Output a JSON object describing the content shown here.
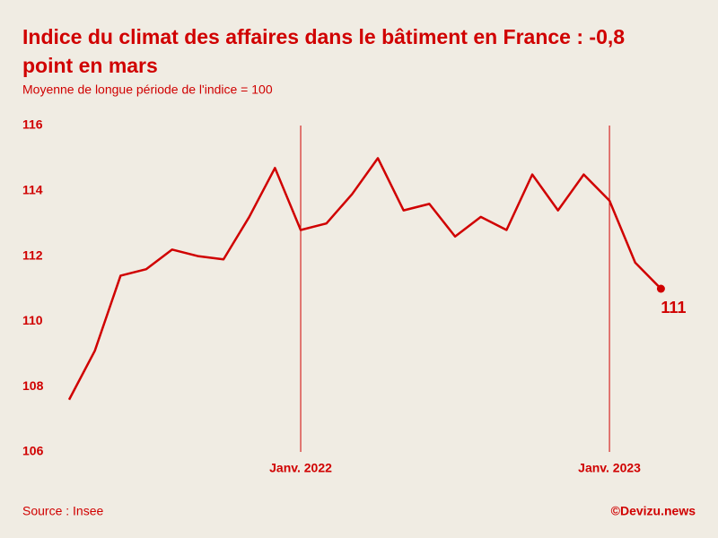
{
  "chart_data": {
    "type": "line",
    "title": "Indice du climat des affaires dans le bâtiment en France : -0,8",
    "title_line2": "point en mars",
    "subtitle": "Moyenne de longue période de l'indice = 100",
    "source": "Source : Insee",
    "credit": "©Devizu.news",
    "categories": [
      null,
      null,
      null,
      null,
      null,
      null,
      null,
      null,
      null,
      "Janv. 2022",
      null,
      null,
      null,
      null,
      null,
      null,
      null,
      null,
      null,
      null,
      null,
      "Janv. 2023",
      null,
      null
    ],
    "series": [
      {
        "name": "Indice",
        "color": "#d00000",
        "values": [
          107.6,
          109.1,
          111.4,
          111.6,
          112.2,
          112.0,
          111.9,
          113.2,
          114.7,
          112.8,
          113.0,
          113.9,
          115.0,
          113.4,
          113.6,
          112.6,
          113.2,
          112.8,
          114.5,
          113.4,
          114.5,
          113.7,
          111.8,
          111.0
        ],
        "value_labels": [
          null,
          null,
          null,
          null,
          null,
          null,
          null,
          null,
          null,
          null,
          null,
          null,
          null,
          null,
          null,
          null,
          null,
          null,
          null,
          null,
          null,
          null,
          null,
          "111"
        ]
      }
    ],
    "ylim": [
      106,
      116
    ],
    "yticks": [
      106,
      108,
      110,
      112,
      114,
      116
    ],
    "grid": false
  }
}
